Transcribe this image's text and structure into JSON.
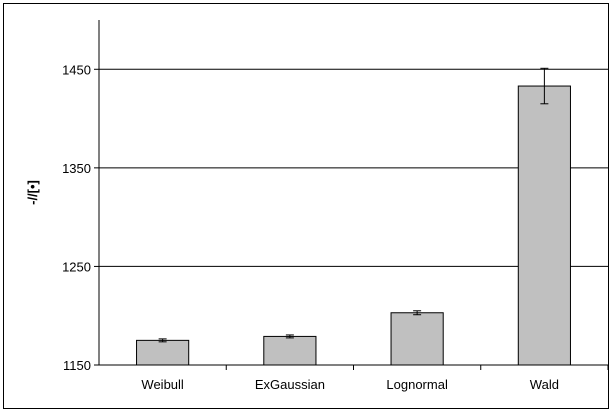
{
  "chart_data": {
    "type": "bar",
    "title": "",
    "xlabel": "",
    "ylabel": "-//[•]",
    "categories": [
      "Weibull",
      "ExGaussian",
      "Lognormal",
      "Wald"
    ],
    "values": [
      1175,
      1179,
      1203,
      1433
    ],
    "error": [
      1.5,
      1.5,
      2,
      18
    ],
    "ylim": [
      1150,
      1500
    ],
    "yticks": [
      1150,
      1250,
      1350,
      1450
    ],
    "grid": true,
    "colors": {
      "bar_fill": "#c0c0c0",
      "bar_stroke": "#000000",
      "grid": "#000000"
    }
  }
}
